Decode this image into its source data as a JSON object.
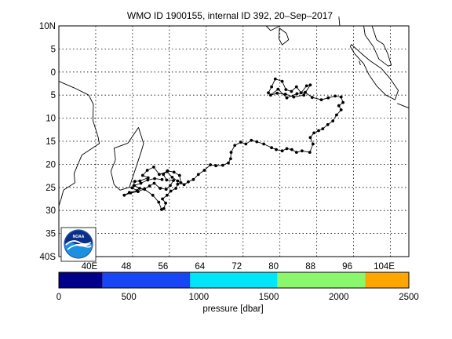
{
  "title": "WMO ID 1900155, internal ID 392, 20–Sep–2017",
  "logo_text": "NOAA",
  "map": {
    "lon_range": [
      32,
      108
    ],
    "lat_range": [
      -40,
      10
    ],
    "lat_ticks": [
      {
        "value": 10,
        "label": "10N"
      },
      {
        "value": 5,
        "label": "5"
      },
      {
        "value": 0,
        "label": "0"
      },
      {
        "value": -5,
        "label": "5"
      },
      {
        "value": -10,
        "label": "10"
      },
      {
        "value": -15,
        "label": "15"
      },
      {
        "value": -20,
        "label": "20"
      },
      {
        "value": -25,
        "label": "25"
      },
      {
        "value": -30,
        "label": "30"
      },
      {
        "value": -35,
        "label": "35"
      },
      {
        "value": -40,
        "label": "40S"
      }
    ],
    "lon_ticks": [
      {
        "value": 40,
        "label": "40E"
      },
      {
        "value": 48,
        "label": "48"
      },
      {
        "value": 56,
        "label": "56"
      },
      {
        "value": 64,
        "label": "64"
      },
      {
        "value": 72,
        "label": "72"
      },
      {
        "value": 80,
        "label": "80"
      },
      {
        "value": 88,
        "label": "88"
      },
      {
        "value": 96,
        "label": "96"
      },
      {
        "value": 104,
        "label": "104E"
      }
    ],
    "grid": true,
    "colors": {
      "track": "#000000",
      "coast": "#000000",
      "grid": "#000000"
    },
    "coastlines": {
      "africa": [
        [
          32,
          -2
        ],
        [
          35.5,
          -3.5
        ],
        [
          38.5,
          -5
        ],
        [
          39.5,
          -7
        ],
        [
          39.4,
          -10.5
        ],
        [
          40.5,
          -14
        ],
        [
          40.8,
          -15.5
        ],
        [
          37,
          -18
        ],
        [
          35.3,
          -22
        ],
        [
          35.5,
          -24
        ],
        [
          33,
          -25.6
        ],
        [
          32.5,
          -27.5
        ],
        [
          32,
          -29
        ]
      ],
      "madagascar": [
        [
          49.3,
          -12
        ],
        [
          50.4,
          -15.5
        ],
        [
          49.8,
          -17.5
        ],
        [
          48.8,
          -20.5
        ],
        [
          47.3,
          -25
        ],
        [
          45.3,
          -25.6
        ],
        [
          44,
          -24.4
        ],
        [
          43.3,
          -21.5
        ],
        [
          44.3,
          -19
        ],
        [
          44,
          -16.5
        ],
        [
          47,
          -15.4
        ],
        [
          49.3,
          -12
        ]
      ],
      "sri_lanka": [
        [
          79.9,
          9.5
        ],
        [
          81.4,
          8.4
        ],
        [
          81.9,
          7
        ],
        [
          80.5,
          5.9
        ],
        [
          79.8,
          7.2
        ],
        [
          79.9,
          9.5
        ]
      ],
      "india": [
        [
          77,
          10
        ],
        [
          78,
          9
        ],
        [
          80,
          10
        ]
      ],
      "andaman": [
        [
          93,
          10
        ],
        [
          92.8,
          12
        ]
      ],
      "sumatra": [
        [
          95.5,
          6
        ],
        [
          97.5,
          4.2
        ],
        [
          99.5,
          2.5
        ],
        [
          102,
          0.8
        ],
        [
          104,
          -1.5
        ],
        [
          105.7,
          -4
        ],
        [
          105,
          -6
        ],
        [
          103,
          -5
        ],
        [
          101,
          -3
        ],
        [
          99.3,
          -0.5
        ],
        [
          98.2,
          1.8
        ],
        [
          96.2,
          4
        ],
        [
          95.3,
          5.5
        ],
        [
          95.5,
          6
        ]
      ],
      "malaya": [
        [
          98.2,
          10
        ],
        [
          98.5,
          8
        ],
        [
          100.3,
          5.5
        ],
        [
          101.5,
          2.8
        ],
        [
          103.5,
          1.3
        ],
        [
          104.2,
          1.5
        ],
        [
          103.4,
          4
        ],
        [
          102.5,
          6
        ],
        [
          101,
          7
        ],
        [
          100,
          10
        ]
      ],
      "sumatra_islands": [
        [
          97.5,
          1.5
        ],
        [
          97.2,
          2.4
        ]
      ],
      "java": [
        [
          105.5,
          -6.8
        ],
        [
          108,
          -7.8
        ]
      ]
    },
    "track": [
      [
        77.5,
        -4.5
      ],
      [
        78.2,
        -3.2
      ],
      [
        79,
        -1.5
      ],
      [
        80.5,
        -2
      ],
      [
        81.3,
        -3.8
      ],
      [
        82.5,
        -4.2
      ],
      [
        83.6,
        -3.2
      ],
      [
        84.6,
        -4.5
      ],
      [
        85.8,
        -3
      ],
      [
        86.6,
        -2.8
      ],
      [
        85.2,
        -5
      ],
      [
        83,
        -5.4
      ],
      [
        81.2,
        -4.8
      ],
      [
        79.4,
        -4.6
      ],
      [
        78,
        -5
      ],
      [
        79.6,
        -3.7
      ],
      [
        81.5,
        -5.6
      ],
      [
        83.7,
        -4.7
      ],
      [
        85.5,
        -4.4
      ],
      [
        87,
        -5.5
      ],
      [
        89,
        -6
      ],
      [
        90.5,
        -5.6
      ],
      [
        92,
        -5.2
      ],
      [
        93.3,
        -5.4
      ],
      [
        93.7,
        -6.6
      ],
      [
        92.8,
        -7.3
      ],
      [
        93.3,
        -8.2
      ],
      [
        92.3,
        -9.3
      ],
      [
        91.5,
        -10.6
      ],
      [
        90.4,
        -11.4
      ],
      [
        89.3,
        -12.3
      ],
      [
        88.4,
        -12.7
      ],
      [
        87.4,
        -13.2
      ],
      [
        86.6,
        -14.2
      ],
      [
        87.2,
        -15.6
      ],
      [
        86.5,
        -17.4
      ],
      [
        84.8,
        -17.1
      ],
      [
        83.6,
        -17.4
      ],
      [
        82.6,
        -16.8
      ],
      [
        81.5,
        -16.6
      ],
      [
        80.5,
        -17.1
      ],
      [
        79.2,
        -16.8
      ],
      [
        78.2,
        -16.4
      ],
      [
        76.5,
        -15.6
      ],
      [
        75,
        -15.1
      ],
      [
        73.8,
        -14.8
      ],
      [
        72.6,
        -15.6
      ],
      [
        71.5,
        -15.2
      ],
      [
        70.2,
        -15.9
      ],
      [
        69.4,
        -17.4
      ],
      [
        69.3,
        -18.8
      ],
      [
        68.8,
        -19.7
      ],
      [
        67.6,
        -20.2
      ],
      [
        66.1,
        -20.3
      ],
      [
        64.9,
        -20.1
      ],
      [
        63.6,
        -21.3
      ],
      [
        62.3,
        -22.2
      ],
      [
        61.2,
        -23.3
      ],
      [
        60.1,
        -23.8
      ],
      [
        59.2,
        -24.4
      ],
      [
        57.8,
        -23.6
      ],
      [
        56.6,
        -22.8
      ],
      [
        55.5,
        -21.6
      ],
      [
        53.8,
        -22.2
      ],
      [
        52.6,
        -20.6
      ],
      [
        51.2,
        -21.3
      ],
      [
        50.2,
        -22.4
      ],
      [
        51.4,
        -22.9
      ],
      [
        49.6,
        -23.6
      ],
      [
        48.5,
        -23.7
      ],
      [
        47.9,
        -25.1
      ],
      [
        49,
        -25.7
      ],
      [
        47.3,
        -26.1
      ],
      [
        46.2,
        -26.7
      ],
      [
        47.6,
        -26.2
      ],
      [
        49.2,
        -25.9
      ],
      [
        50.6,
        -25.3
      ],
      [
        51.7,
        -24.7
      ],
      [
        52.7,
        -24.1
      ],
      [
        54,
        -25.2
      ],
      [
        55.3,
        -25.4
      ],
      [
        56.2,
        -24.6
      ],
      [
        56.9,
        -23.5
      ],
      [
        55.4,
        -23.4
      ],
      [
        54.7,
        -22.2
      ],
      [
        55.6,
        -21.4
      ],
      [
        57,
        -21.7
      ],
      [
        58.2,
        -22.4
      ],
      [
        58.5,
        -24
      ],
      [
        57.8,
        -24.3
      ],
      [
        57.4,
        -25.2
      ],
      [
        56.3,
        -25.8
      ],
      [
        55.5,
        -26.7
      ],
      [
        54.5,
        -27.5
      ],
      [
        55.2,
        -28.4
      ],
      [
        54.8,
        -29.6
      ],
      [
        54.3,
        -29.8
      ],
      [
        53.7,
        -28.2
      ],
      [
        52.4,
        -26.7
      ],
      [
        50.6,
        -25.4
      ],
      [
        49.5,
        -25.2
      ],
      [
        48.4,
        -24.6
      ],
      [
        49.8,
        -24.1
      ],
      [
        51.3,
        -23.4
      ],
      [
        52.8,
        -23.1
      ],
      [
        54.4,
        -23.3
      ]
    ]
  },
  "colorbar": {
    "segments": [
      {
        "from": 0,
        "to": 312,
        "color": "#00008a"
      },
      {
        "from": 312,
        "to": 938,
        "color": "#1846f5"
      },
      {
        "from": 938,
        "to": 1562,
        "color": "#00e6f8"
      },
      {
        "from": 1562,
        "to": 2188,
        "color": "#8af76c"
      },
      {
        "from": 2188,
        "to": 2500,
        "color": "#ffa600"
      }
    ],
    "tick_labels": [
      "0",
      "500",
      "1000",
      "1500",
      "2000",
      "2500"
    ],
    "tick_values": [
      0,
      500,
      1000,
      1500,
      2000,
      2500
    ],
    "range": [
      0,
      2500
    ],
    "label": "pressure [dbar]"
  }
}
